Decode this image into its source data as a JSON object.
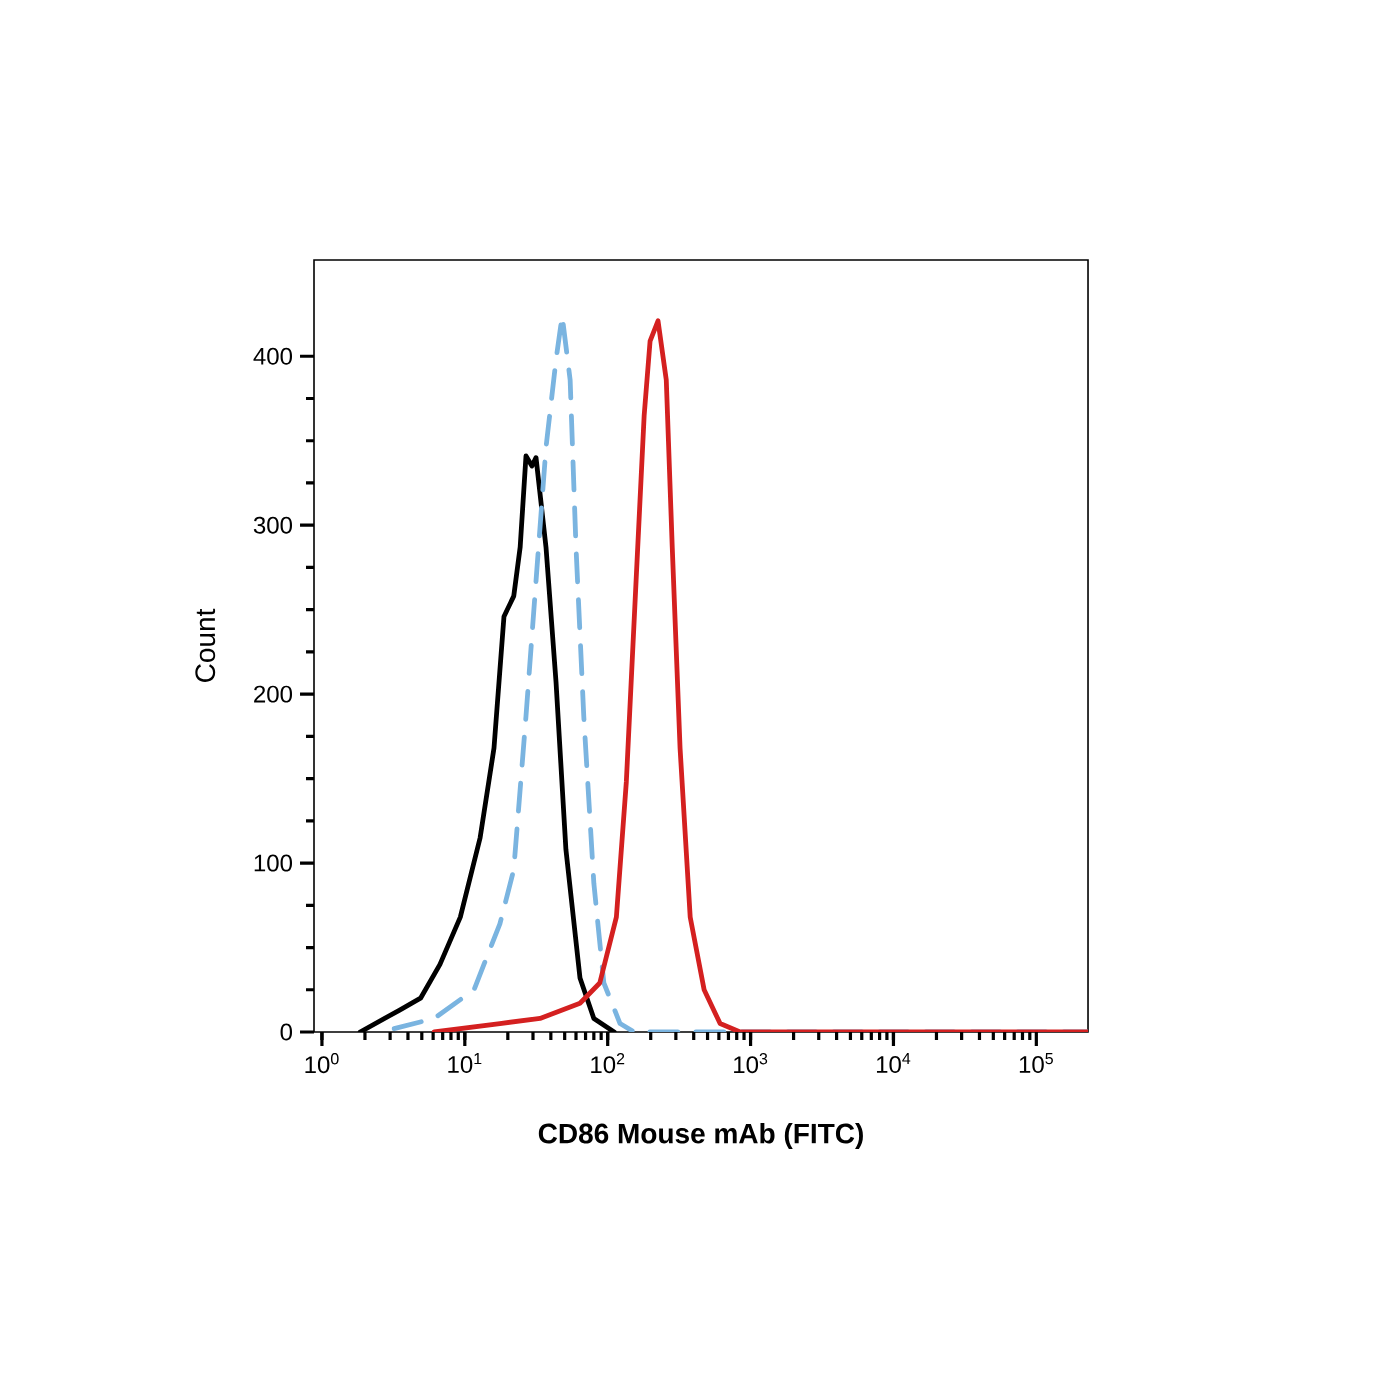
{
  "chart_data": {
    "type": "line",
    "xlabel": "CD86 Mouse mAb (FITC)",
    "ylabel": "Count",
    "log": "x",
    "grid": false,
    "marker": "none",
    "xlim": [
      0.88,
      230000
    ],
    "ylim": [
      0,
      457
    ],
    "xticks": [
      {
        "value": 1,
        "label": "10$^{0}$"
      },
      {
        "value": 10,
        "label": "10$^{1}$"
      },
      {
        "value": 100,
        "label": "10$^{2}$"
      },
      {
        "value": 1000,
        "label": "10$^{3}$"
      },
      {
        "value": 10000,
        "label": "10$^{4}$"
      },
      {
        "value": 100000,
        "label": "10$^{5}$"
      }
    ],
    "yticks": [
      0,
      100,
      200,
      300,
      400
    ],
    "series": [
      {
        "color": "#000000",
        "line_style": "solid",
        "x": [
          1.85,
          3.5,
          4.9,
          6.7,
          9.3,
          12.8,
          16,
          18.8,
          22,
          24.4,
          26.8,
          29.5,
          31.5,
          37,
          43.5,
          51,
          64,
          80,
          111
        ],
        "values": [
          0,
          13,
          20,
          40,
          68,
          115,
          168,
          246,
          258,
          287,
          341,
          335,
          340,
          287,
          207,
          108,
          32,
          8,
          0
        ]
      },
      {
        "color": "#7ab4e0",
        "line_style": "dashed",
        "x": [
          3.2,
          6.1,
          11.6,
          17.6,
          22,
          26.8,
          31.5,
          37,
          43.5,
          48,
          54.6,
          60,
          68,
          80,
          94,
          122,
          153,
          230000
        ],
        "values": [
          2,
          8,
          25,
          64,
          96,
          187,
          267,
          346,
          398,
          424,
          386,
          287,
          187,
          88,
          29,
          5,
          0,
          0
        ]
      },
      {
        "color": "#d42020",
        "line_style": "solid",
        "x": [
          6.1,
          17.6,
          33.6,
          64,
          88,
          115,
          135,
          158,
          180,
          198,
          225,
          257,
          283,
          321,
          378,
          473,
          612,
          845,
          230000
        ],
        "values": [
          0,
          5,
          8,
          17,
          29,
          68,
          148,
          267,
          365,
          409,
          421,
          386,
          287,
          168,
          68,
          25,
          5,
          0,
          0
        ]
      }
    ]
  }
}
